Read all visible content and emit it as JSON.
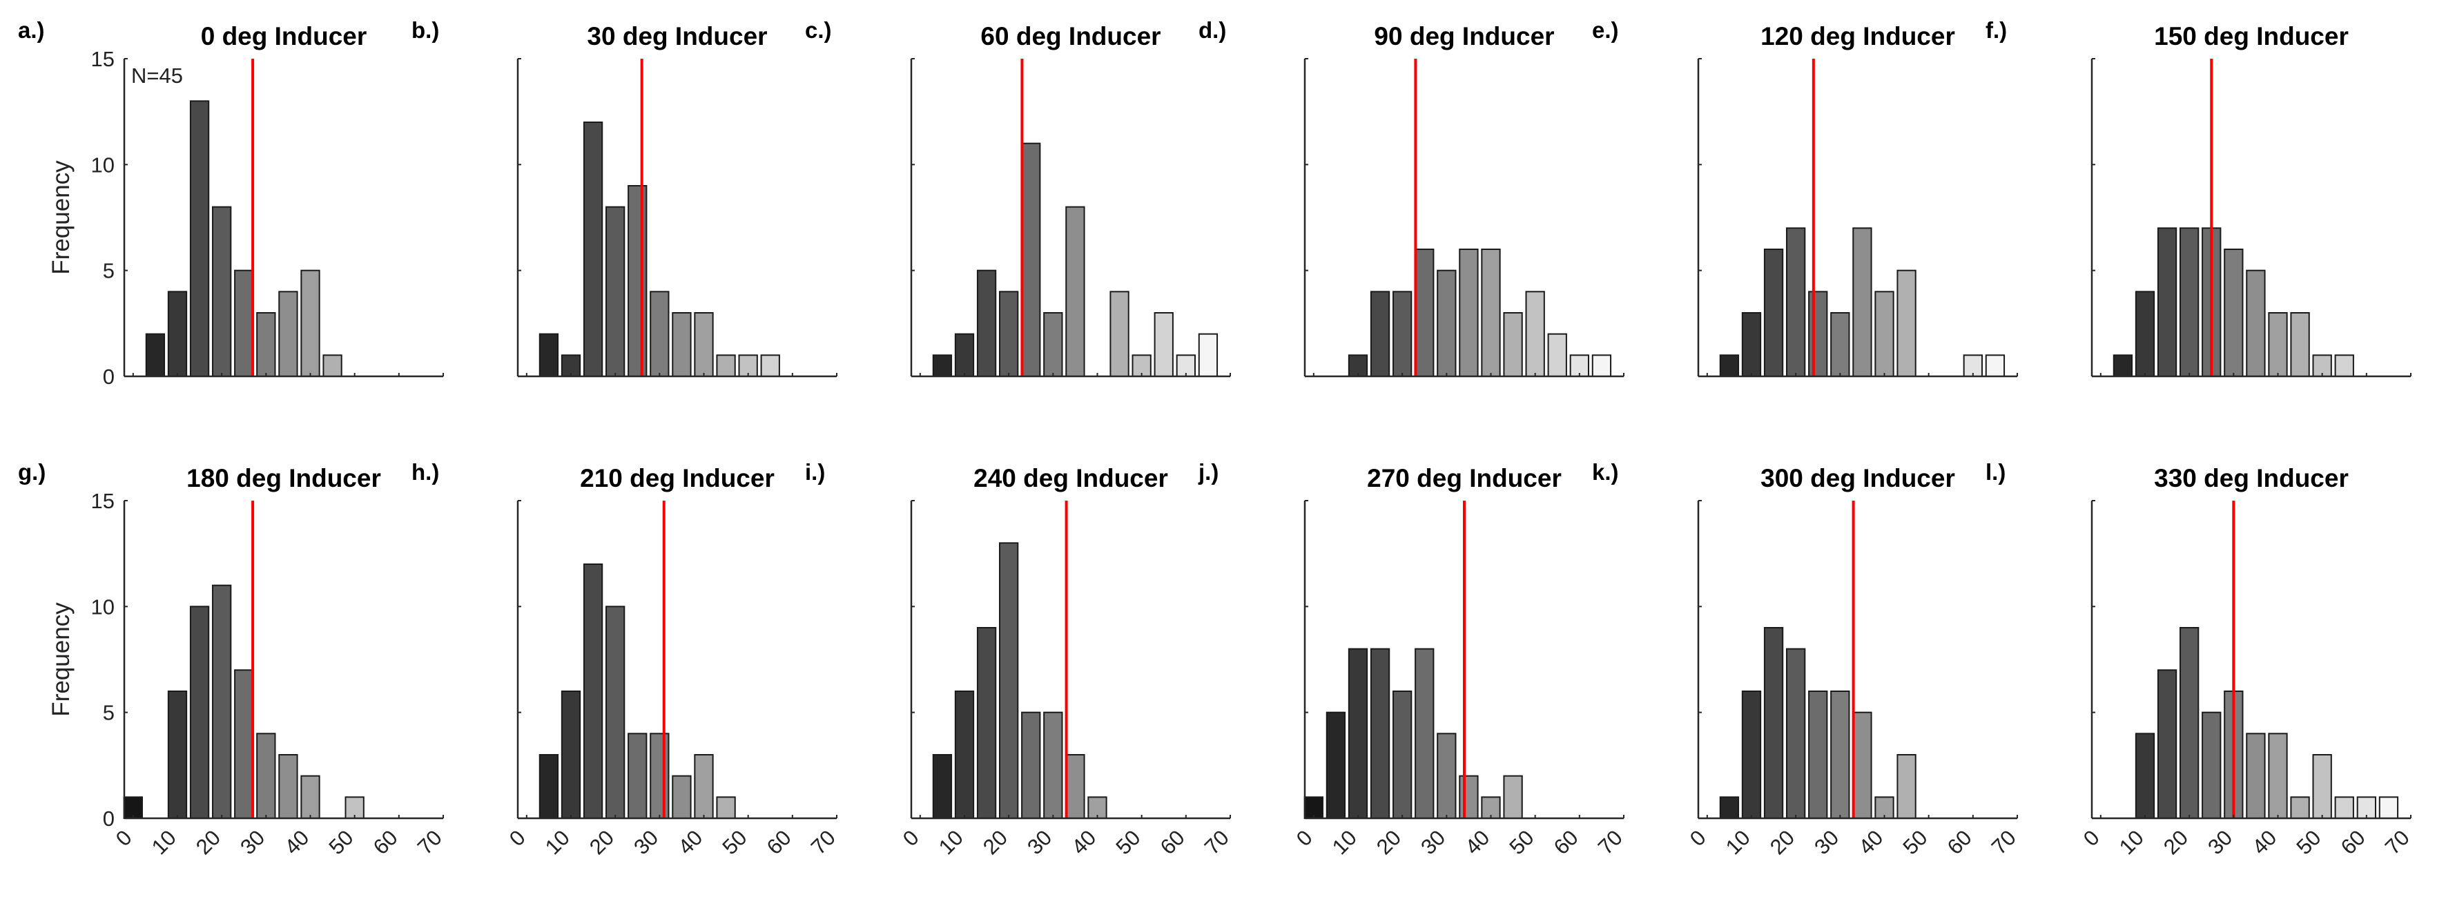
{
  "figure": {
    "colors": {
      "mean_line": "#ff0000",
      "bar_edge": "#1a1a1a",
      "axis": "#262626"
    },
    "annotation": "N=45",
    "ylabel": "Frequency"
  },
  "chart_data": [
    {
      "type": "bar",
      "panel": "a.)",
      "title": "0 deg Inducer",
      "ylabel": "Frequency",
      "annotation": "N=45",
      "x_ticks": [],
      "y_ticks": [
        "0",
        "5",
        "10",
        "15"
      ],
      "xlim": [
        -2,
        70
      ],
      "ylim": [
        0,
        15
      ],
      "bin_width": 5,
      "x": [
        5,
        10,
        15,
        20,
        25,
        30,
        35,
        40,
        45,
        50,
        55,
        60,
        65
      ],
      "values": [
        2,
        4,
        13,
        8,
        5,
        3,
        4,
        5,
        1,
        0,
        0,
        0,
        0
      ],
      "mean_line": 27
    },
    {
      "type": "bar",
      "panel": "b.)",
      "title": "30 deg Inducer",
      "x_ticks": [],
      "y_ticks": [],
      "xlim": [
        -2,
        70
      ],
      "ylim": [
        0,
        15
      ],
      "bin_width": 5,
      "x": [
        5,
        10,
        15,
        20,
        25,
        30,
        35,
        40,
        45,
        50,
        55,
        60,
        65
      ],
      "values": [
        2,
        1,
        12,
        8,
        9,
        4,
        3,
        3,
        1,
        1,
        1,
        0,
        0
      ],
      "mean_line": 26
    },
    {
      "type": "bar",
      "panel": "c.)",
      "title": "60 deg Inducer",
      "x_ticks": [],
      "y_ticks": [],
      "xlim": [
        -2,
        70
      ],
      "ylim": [
        0,
        15
      ],
      "bin_width": 5,
      "x": [
        5,
        10,
        15,
        20,
        25,
        30,
        35,
        40,
        45,
        50,
        55,
        60,
        65
      ],
      "values": [
        1,
        2,
        5,
        4,
        11,
        3,
        8,
        0,
        4,
        1,
        3,
        1,
        2
      ],
      "mean_line": 23
    },
    {
      "type": "bar",
      "panel": "d.)",
      "title": "90 deg Inducer",
      "x_ticks": [],
      "y_ticks": [],
      "xlim": [
        -2,
        70
      ],
      "ylim": [
        0,
        15
      ],
      "bin_width": 5,
      "x": [
        5,
        10,
        15,
        20,
        25,
        30,
        35,
        40,
        45,
        50,
        55,
        60,
        65
      ],
      "values": [
        0,
        1,
        4,
        4,
        6,
        5,
        6,
        6,
        3,
        4,
        2,
        1,
        1
      ],
      "mean_line": 23
    },
    {
      "type": "bar",
      "panel": "e.)",
      "title": "120 deg Inducer",
      "x_ticks": [],
      "y_ticks": [],
      "xlim": [
        -2,
        70
      ],
      "ylim": [
        0,
        15
      ],
      "bin_width": 5,
      "x": [
        5,
        10,
        15,
        20,
        25,
        30,
        35,
        40,
        45,
        50,
        55,
        60,
        65
      ],
      "values": [
        1,
        3,
        6,
        7,
        4,
        3,
        7,
        4,
        5,
        0,
        0,
        1,
        1
      ],
      "mean_line": 24
    },
    {
      "type": "bar",
      "panel": "f.)",
      "title": "150 deg Inducer",
      "x_ticks": [],
      "y_ticks": [],
      "xlim": [
        -2,
        70
      ],
      "ylim": [
        0,
        15
      ],
      "bin_width": 5,
      "x": [
        5,
        10,
        15,
        20,
        25,
        30,
        35,
        40,
        45,
        50,
        55,
        60,
        65
      ],
      "values": [
        1,
        4,
        7,
        7,
        7,
        6,
        5,
        3,
        3,
        1,
        1,
        0,
        0
      ],
      "mean_line": 25
    },
    {
      "type": "bar",
      "panel": "g.)",
      "title": "180 deg Inducer",
      "ylabel": "Frequency",
      "x_ticks": [
        "0",
        "10",
        "20",
        "30",
        "40",
        "50",
        "60",
        "70"
      ],
      "y_ticks": [
        "0",
        "5",
        "10",
        "15"
      ],
      "xlim": [
        -2,
        70
      ],
      "ylim": [
        0,
        15
      ],
      "bin_width": 5,
      "x": [
        0,
        5,
        10,
        15,
        20,
        25,
        30,
        35,
        40,
        45,
        50,
        55,
        60,
        65
      ],
      "values": [
        1,
        0,
        6,
        10,
        11,
        7,
        4,
        3,
        2,
        0,
        1,
        0,
        0,
        0
      ],
      "mean_line": 27
    },
    {
      "type": "bar",
      "panel": "h.)",
      "title": "210 deg Inducer",
      "x_ticks": [
        "0",
        "10",
        "20",
        "30",
        "40",
        "50",
        "60",
        "70"
      ],
      "y_ticks": [],
      "xlim": [
        -2,
        70
      ],
      "ylim": [
        0,
        15
      ],
      "bin_width": 5,
      "x": [
        5,
        10,
        15,
        20,
        25,
        30,
        35,
        40,
        45,
        50,
        55,
        60,
        65
      ],
      "values": [
        3,
        6,
        12,
        10,
        4,
        4,
        2,
        3,
        1,
        0,
        0,
        0,
        0
      ],
      "mean_line": 31
    },
    {
      "type": "bar",
      "panel": "i.)",
      "title": "240 deg Inducer",
      "x_ticks": [
        "0",
        "10",
        "20",
        "30",
        "40",
        "50",
        "60",
        "70"
      ],
      "y_ticks": [],
      "xlim": [
        -2,
        70
      ],
      "ylim": [
        0,
        15
      ],
      "bin_width": 5,
      "x": [
        5,
        10,
        15,
        20,
        25,
        30,
        35,
        40,
        45,
        50,
        55,
        60,
        65
      ],
      "values": [
        3,
        6,
        9,
        13,
        5,
        5,
        3,
        1,
        0,
        0,
        0,
        0,
        0
      ],
      "mean_line": 33
    },
    {
      "type": "bar",
      "panel": "j.)",
      "title": "270 deg Inducer",
      "x_ticks": [
        "0",
        "10",
        "20",
        "30",
        "40",
        "50",
        "60",
        "70"
      ],
      "y_ticks": [],
      "xlim": [
        -2,
        70
      ],
      "ylim": [
        0,
        15
      ],
      "bin_width": 5,
      "x": [
        0,
        5,
        10,
        15,
        20,
        25,
        30,
        35,
        40,
        45,
        50,
        55,
        60,
        65
      ],
      "values": [
        1,
        5,
        8,
        8,
        6,
        8,
        4,
        2,
        1,
        2,
        0,
        0,
        0,
        0
      ],
      "mean_line": 34
    },
    {
      "type": "bar",
      "panel": "k.)",
      "title": "300 deg Inducer",
      "x_ticks": [
        "0",
        "10",
        "20",
        "30",
        "40",
        "50",
        "60",
        "70"
      ],
      "y_ticks": [],
      "xlim": [
        -2,
        70
      ],
      "ylim": [
        0,
        15
      ],
      "bin_width": 5,
      "x": [
        5,
        10,
        15,
        20,
        25,
        30,
        35,
        40,
        45,
        50,
        55,
        60,
        65
      ],
      "values": [
        1,
        6,
        9,
        8,
        6,
        6,
        5,
        1,
        3,
        0,
        0,
        0,
        0
      ],
      "mean_line": 33
    },
    {
      "type": "bar",
      "panel": "l.)",
      "title": "330 deg Inducer",
      "x_ticks": [
        "0",
        "10",
        "20",
        "30",
        "40",
        "50",
        "60",
        "70"
      ],
      "y_ticks": [],
      "xlim": [
        -2,
        70
      ],
      "ylim": [
        0,
        15
      ],
      "bin_width": 5,
      "x": [
        5,
        10,
        15,
        20,
        25,
        30,
        35,
        40,
        45,
        50,
        55,
        60,
        65
      ],
      "values": [
        0,
        4,
        7,
        9,
        5,
        6,
        4,
        4,
        1,
        3,
        1,
        1,
        1
      ],
      "mean_line": 30
    }
  ]
}
